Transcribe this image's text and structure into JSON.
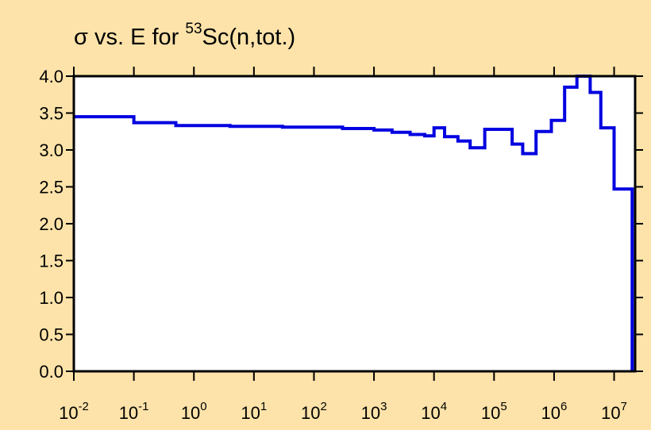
{
  "chart_data": {
    "type": "line",
    "step": true,
    "title": {
      "prefix": "σ vs. E for ",
      "sup": "53",
      "suffix": "Sc(n,tot.)"
    },
    "xlabel": "",
    "ylabel": "",
    "x_scale": "log",
    "xlim_exp": [
      -2,
      7.35
    ],
    "ylim": [
      0,
      4.0
    ],
    "x_ticks": [
      {
        "base": "10",
        "exp": "-2"
      },
      {
        "base": "10",
        "exp": "-1"
      },
      {
        "base": "10",
        "exp": "0"
      },
      {
        "base": "10",
        "exp": "1"
      },
      {
        "base": "10",
        "exp": "2"
      },
      {
        "base": "10",
        "exp": "3"
      },
      {
        "base": "10",
        "exp": "4"
      },
      {
        "base": "10",
        "exp": "5"
      },
      {
        "base": "10",
        "exp": "6"
      },
      {
        "base": "10",
        "exp": "7"
      }
    ],
    "y_ticks": [
      "0.0",
      "0.5",
      "1.0",
      "1.5",
      "2.0",
      "2.5",
      "3.0",
      "3.5",
      "4.0"
    ],
    "grid": false,
    "line_color": "#0000e0",
    "background": "#fde3a9",
    "plot_background": "#ffffff",
    "series": [
      {
        "x": [
          0.01,
          0.1,
          0.1,
          0.5,
          0.5,
          4,
          4,
          30,
          30,
          300,
          300,
          1000,
          1000,
          2000,
          2000,
          4000,
          4000,
          7000,
          7000,
          10000,
          10000,
          15000,
          15000,
          25000,
          25000,
          40000,
          40000,
          70000,
          70000,
          200000,
          200000,
          300000,
          300000,
          500000,
          500000,
          900000,
          900000,
          1500000,
          1500000,
          2400000,
          2400000,
          4000000,
          4000000,
          6000000,
          6000000,
          10000000,
          10000000,
          20000000,
          20000000
        ],
        "y": [
          3.45,
          3.45,
          3.37,
          3.37,
          3.33,
          3.33,
          3.32,
          3.32,
          3.31,
          3.31,
          3.29,
          3.29,
          3.27,
          3.27,
          3.24,
          3.24,
          3.21,
          3.21,
          3.19,
          3.19,
          3.3,
          3.3,
          3.18,
          3.18,
          3.12,
          3.12,
          3.03,
          3.03,
          3.28,
          3.28,
          3.08,
          3.08,
          2.95,
          2.95,
          3.25,
          3.25,
          3.4,
          3.4,
          3.85,
          3.85,
          4.0,
          4.0,
          3.78,
          3.78,
          3.3,
          3.3,
          2.47,
          2.47,
          0.0
        ]
      }
    ]
  }
}
